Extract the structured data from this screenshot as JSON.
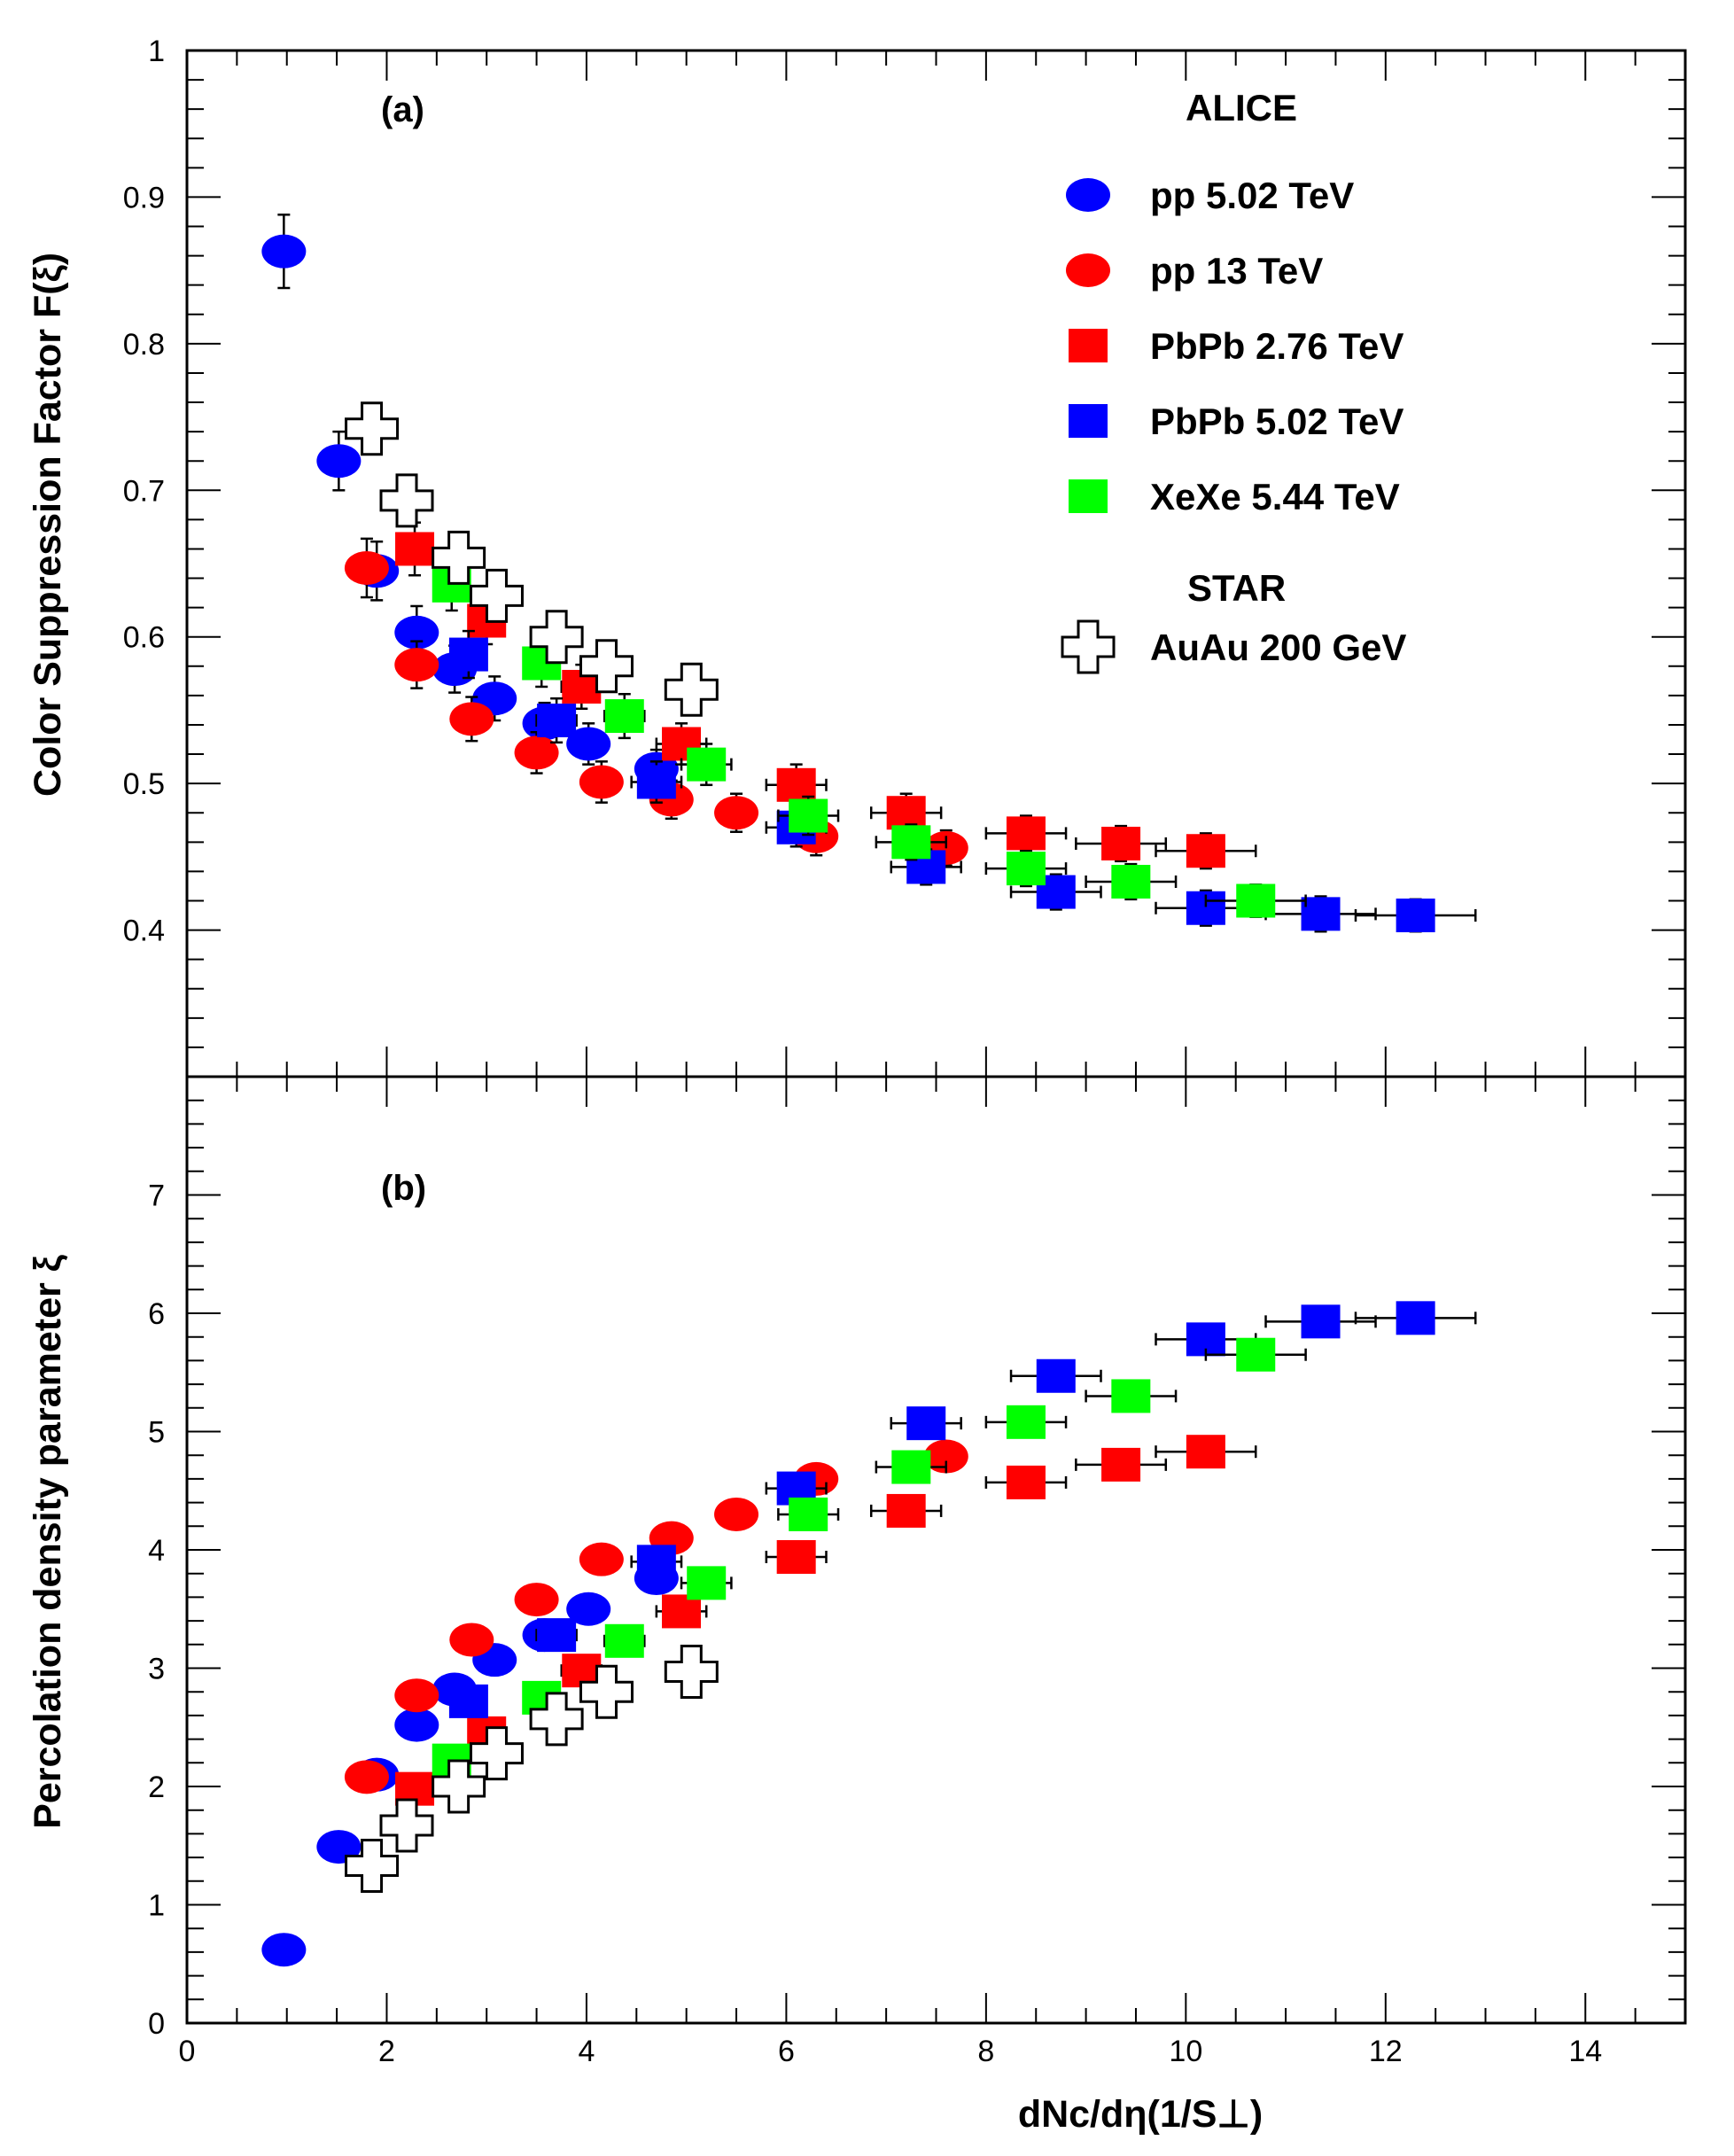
{
  "chart_data": [
    {
      "panel": "a",
      "type": "scatter",
      "panel_label": "(a)",
      "ylabel": "Color Suppression Factor F(ξ)",
      "xlim": [
        0,
        15
      ],
      "ylim": [
        0.3,
        1.0
      ],
      "yticks": [
        "0.4",
        "0.5",
        "0.6",
        "0.7",
        "0.8",
        "0.9",
        "1"
      ],
      "legend": {
        "group1_title": "ALICE",
        "group2_title": "STAR"
      },
      "series": [
        {
          "name": "pp 5.02 TeV",
          "marker": "circle",
          "color": "#0000ff",
          "points": [
            [
              0.97,
              0.863,
              0.025
            ],
            [
              1.52,
              0.72,
              0.02
            ],
            [
              1.9,
              0.645,
              0.02
            ],
            [
              2.3,
              0.603,
              0.018
            ],
            [
              2.68,
              0.578,
              0.016
            ],
            [
              3.08,
              0.558,
              0.015
            ],
            [
              3.58,
              0.541,
              0.014
            ],
            [
              4.02,
              0.527,
              0.014
            ],
            [
              4.7,
              0.51,
              0.013
            ]
          ]
        },
        {
          "name": "pp 13 TeV",
          "marker": "circle",
          "color": "#ff0000",
          "points": [
            [
              1.8,
              0.647,
              0.02
            ],
            [
              2.3,
              0.581,
              0.016
            ],
            [
              2.85,
              0.544,
              0.015
            ],
            [
              3.5,
              0.521,
              0.014
            ],
            [
              4.15,
              0.501,
              0.014
            ],
            [
              4.85,
              0.489,
              0.013
            ],
            [
              5.5,
              0.48,
              0.013
            ],
            [
              6.3,
              0.464,
              0.013
            ],
            [
              7.6,
              0.456,
              0.012
            ]
          ]
        },
        {
          "name": "PbPb 2.76 TeV",
          "marker": "square",
          "color": "#ff0000",
          "points": [
            [
              2.28,
              0.66,
              0.018,
              0.12
            ],
            [
              3.0,
              0.611,
              0.016,
              0.15
            ],
            [
              3.95,
              0.566,
              0.015,
              0.2
            ],
            [
              4.95,
              0.527,
              0.014,
              0.25
            ],
            [
              6.1,
              0.499,
              0.014,
              0.3
            ],
            [
              7.2,
              0.48,
              0.013,
              0.35
            ],
            [
              8.4,
              0.466,
              0.012,
              0.4
            ],
            [
              9.35,
              0.459,
              0.012,
              0.45
            ],
            [
              10.2,
              0.454,
              0.012,
              0.5
            ]
          ]
        },
        {
          "name": "PbPb 5.02 TeV",
          "marker": "square",
          "color": "#0000ff",
          "points": [
            [
              2.82,
              0.588,
              0.016,
              0.15
            ],
            [
              3.7,
              0.543,
              0.015,
              0.2
            ],
            [
              4.7,
              0.501,
              0.014,
              0.25
            ],
            [
              6.1,
              0.47,
              0.013,
              0.3
            ],
            [
              7.4,
              0.443,
              0.012,
              0.35
            ],
            [
              8.7,
              0.426,
              0.012,
              0.45
            ],
            [
              10.2,
              0.415,
              0.012,
              0.5
            ],
            [
              11.35,
              0.411,
              0.012,
              0.55
            ],
            [
              12.3,
              0.41,
              0.011,
              0.6
            ]
          ]
        },
        {
          "name": "XeXe 5.44 TeV",
          "marker": "square",
          "color": "#00ff00",
          "points": [
            [
              2.65,
              0.635,
              0.017,
              0.12
            ],
            [
              3.55,
              0.582,
              0.016,
              0.15
            ],
            [
              4.38,
              0.546,
              0.015,
              0.2
            ],
            [
              5.2,
              0.513,
              0.014,
              0.25
            ],
            [
              6.22,
              0.478,
              0.013,
              0.3
            ],
            [
              7.25,
              0.46,
              0.012,
              0.35
            ],
            [
              8.4,
              0.442,
              0.012,
              0.4
            ],
            [
              9.45,
              0.433,
              0.012,
              0.45
            ],
            [
              10.7,
              0.42,
              0.011,
              0.5
            ]
          ]
        },
        {
          "name": "AuAu 200 GeV",
          "marker": "cross",
          "color": "#000000",
          "points": [
            [
              1.85,
              0.742
            ],
            [
              2.2,
              0.693
            ],
            [
              2.72,
              0.654
            ],
            [
              3.1,
              0.628
            ],
            [
              3.7,
              0.6
            ],
            [
              4.2,
              0.58
            ],
            [
              5.05,
              0.564
            ]
          ]
        }
      ]
    },
    {
      "panel": "b",
      "type": "scatter",
      "panel_label": "(b)",
      "ylabel": "Percolation density parameter ξ",
      "xlabel": "dNc/dη(1/S⊥)",
      "xlim": [
        0,
        15
      ],
      "ylim": [
        0,
        8
      ],
      "xticks": [
        "0",
        "2",
        "4",
        "6",
        "8",
        "10",
        "12",
        "14"
      ],
      "yticks": [
        "0",
        "1",
        "2",
        "3",
        "4",
        "5",
        "6",
        "7"
      ],
      "series": [
        {
          "name": "pp 5.02 TeV",
          "marker": "circle",
          "color": "#0000ff",
          "points": [
            [
              0.97,
              0.62
            ],
            [
              1.52,
              1.49
            ],
            [
              1.9,
              2.1
            ],
            [
              2.3,
              2.52
            ],
            [
              2.68,
              2.82
            ],
            [
              3.08,
              3.07
            ],
            [
              3.58,
              3.28
            ],
            [
              4.02,
              3.5
            ],
            [
              4.7,
              3.76
            ]
          ]
        },
        {
          "name": "pp 13 TeV",
          "marker": "circle",
          "color": "#ff0000",
          "points": [
            [
              1.8,
              2.08
            ],
            [
              2.3,
              2.77
            ],
            [
              2.85,
              3.24
            ],
            [
              3.5,
              3.58
            ],
            [
              4.15,
              3.92
            ],
            [
              4.85,
              4.1
            ],
            [
              5.5,
              4.3
            ],
            [
              6.3,
              4.6
            ],
            [
              7.6,
              4.79
            ]
          ]
        },
        {
          "name": "PbPb 2.76 TeV",
          "marker": "square",
          "color": "#ff0000",
          "points": [
            [
              2.28,
              1.98,
              0.12
            ],
            [
              3.0,
              2.45,
              0.15
            ],
            [
              3.95,
              2.98,
              0.2
            ],
            [
              4.95,
              3.48,
              0.25
            ],
            [
              6.1,
              3.94,
              0.3
            ],
            [
              7.2,
              4.33,
              0.35
            ],
            [
              8.4,
              4.57,
              0.4
            ],
            [
              9.35,
              4.72,
              0.45
            ],
            [
              10.2,
              4.83,
              0.5
            ]
          ]
        },
        {
          "name": "PbPb 5.02 TeV",
          "marker": "square",
          "color": "#0000ff",
          "points": [
            [
              2.82,
              2.72,
              0.15
            ],
            [
              3.7,
              3.28,
              0.2
            ],
            [
              4.7,
              3.9,
              0.25
            ],
            [
              6.1,
              4.52,
              0.3
            ],
            [
              7.4,
              5.07,
              0.35
            ],
            [
              8.7,
              5.47,
              0.45
            ],
            [
              10.2,
              5.78,
              0.5
            ],
            [
              11.35,
              5.93,
              0.55
            ],
            [
              12.3,
              5.96,
              0.6
            ]
          ]
        },
        {
          "name": "XeXe 5.44 TeV",
          "marker": "square",
          "color": "#00ff00",
          "points": [
            [
              2.65,
              2.22,
              0.12
            ],
            [
              3.55,
              2.75,
              0.15
            ],
            [
              4.38,
              3.23,
              0.2
            ],
            [
              5.2,
              3.72,
              0.25
            ],
            [
              6.22,
              4.3,
              0.3
            ],
            [
              7.25,
              4.7,
              0.35
            ],
            [
              8.4,
              5.08,
              0.4
            ],
            [
              9.45,
              5.3,
              0.45
            ],
            [
              10.7,
              5.65,
              0.5
            ]
          ]
        },
        {
          "name": "AuAu 200 GeV",
          "marker": "cross",
          "color": "#000000",
          "points": [
            [
              1.85,
              1.33
            ],
            [
              2.2,
              1.67
            ],
            [
              2.72,
              2.0
            ],
            [
              3.1,
              2.28
            ],
            [
              3.7,
              2.57
            ],
            [
              4.2,
              2.8
            ],
            [
              5.05,
              2.97
            ]
          ]
        }
      ]
    }
  ]
}
